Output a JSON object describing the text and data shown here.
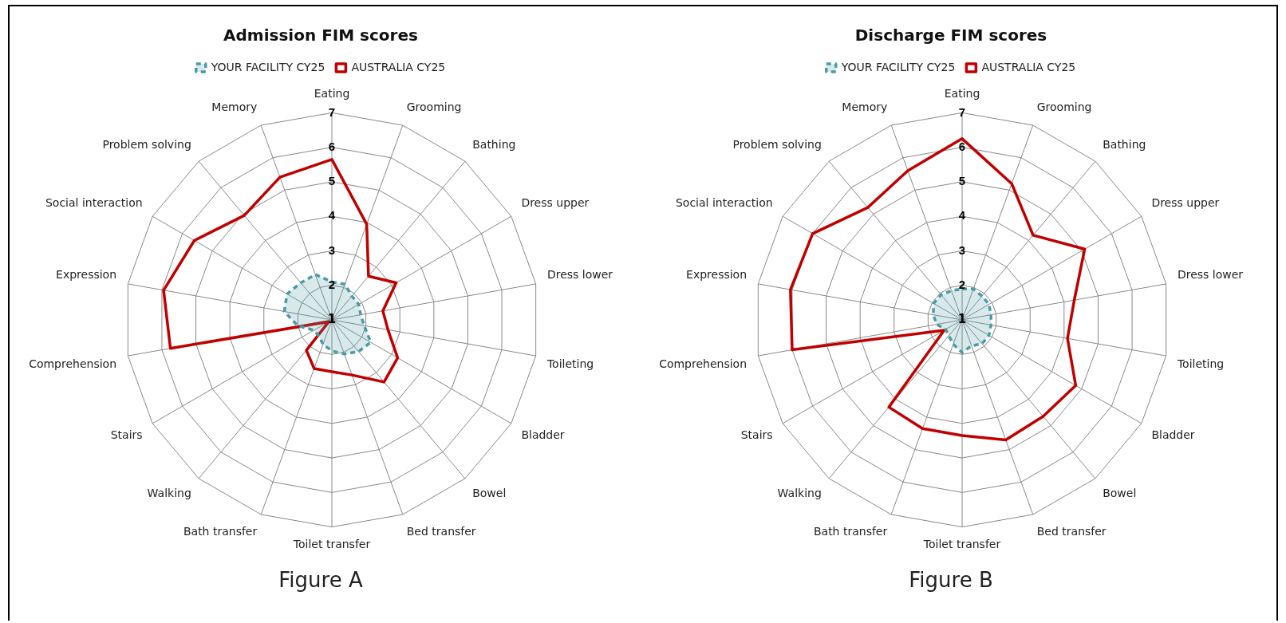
{
  "chart_data": [
    {
      "type": "radar",
      "title": "Admission FIM scores",
      "categories": [
        "Eating",
        "Grooming",
        "Bathing",
        "Dress upper",
        "Dress lower",
        "Toileting",
        "Bladder",
        "Bowel",
        "Bed transfer",
        "Toilet transfer",
        "Bath transfer",
        "Walking",
        "Stairs",
        "Comprehension",
        "Expression",
        "Social interaction",
        "Problem solving",
        "Memory"
      ],
      "series": [
        {
          "name": "YOUR FACILITY CY25",
          "color": "#4a9ba5",
          "line_style": "dashed",
          "values": [
            2.1,
            2.1,
            1.9,
            1.9,
            1.85,
            1.95,
            2.3,
            2.2,
            2.05,
            1.9,
            1.75,
            1.6,
            1.6,
            2.0,
            2.4,
            2.5,
            2.4,
            2.4
          ]
        },
        {
          "name": "AUSTRALIA CY25",
          "color": "#c00000",
          "line_style": "solid",
          "values": [
            5.65,
            3.95,
            2.65,
            3.15,
            2.5,
            2.65,
            3.2,
            3.35,
            2.7,
            2.5,
            2.5,
            2.15,
            1.1,
            5.75,
            5.95,
            5.6,
            4.95,
            5.4
          ]
        }
      ],
      "ylim": [
        1,
        7
      ],
      "yticks": [
        1,
        2,
        3,
        4,
        5,
        6,
        7
      ],
      "grid": true,
      "legend": "top",
      "marker": "none",
      "annotations": [
        "Figure A"
      ]
    },
    {
      "type": "radar",
      "title": "Discharge FIM scores",
      "categories": [
        "Eating",
        "Grooming",
        "Bathing",
        "Dress upper",
        "Dress lower",
        "Toileting",
        "Bladder",
        "Bowel",
        "Bed transfer",
        "Toilet transfer",
        "Bath transfer",
        "Walking",
        "Stairs",
        "Comprehension",
        "Expression",
        "Social interaction",
        "Problem solving",
        "Memory"
      ],
      "series": [
        {
          "name": "YOUR FACILITY CY25",
          "color": "#4a9ba5",
          "line_style": "dashed",
          "values": [
            1.9,
            1.95,
            1.9,
            1.9,
            1.85,
            1.85,
            1.9,
            1.9,
            1.8,
            1.95,
            1.75,
            1.6,
            1.55,
            1.75,
            1.85,
            1.95,
            1.95,
            1.9
          ]
        },
        {
          "name": "AUSTRALIA CY25",
          "color": "#c00000",
          "line_style": "solid",
          "values": [
            6.25,
            5.2,
            4.2,
            5.1,
            4.3,
            4.1,
            4.8,
            4.65,
            4.7,
            4.35,
            4.35,
            4.3,
            1.6,
            6.0,
            6.05,
            6.0,
            5.25,
            5.6
          ]
        }
      ],
      "ylim": [
        1,
        7
      ],
      "yticks": [
        1,
        2,
        3,
        4,
        5,
        6,
        7
      ],
      "grid": true,
      "legend": "top",
      "marker": "none",
      "annotations": [
        "Figure B"
      ]
    }
  ]
}
